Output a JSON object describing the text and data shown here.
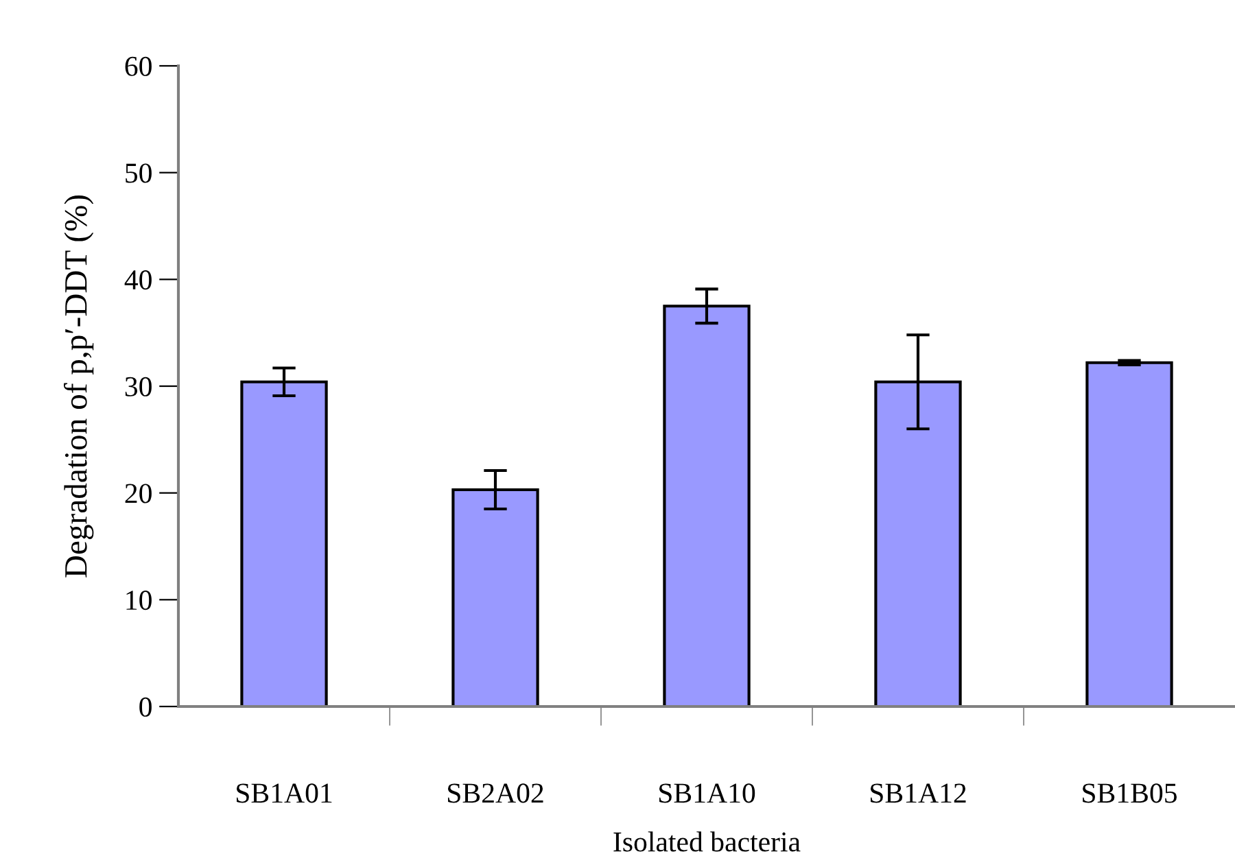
{
  "chart_data": {
    "type": "bar",
    "xlabel": "Isolated bacteria",
    "ylabel": "Degradation of p,p′-DDT (%)",
    "categories": [
      "SB1A01",
      "SB2A02",
      "SB1A10",
      "SB1A12",
      "SB1B05"
    ],
    "values": [
      30.4,
      20.3,
      37.5,
      30.4,
      32.2
    ],
    "errors": [
      1.3,
      1.8,
      1.6,
      4.4,
      0.2
    ],
    "color": "#9999ff",
    "ylim": [
      0,
      60
    ],
    "yticks": [
      0,
      10,
      20,
      30,
      40,
      50,
      60
    ],
    "grid": false,
    "legend": false
  }
}
